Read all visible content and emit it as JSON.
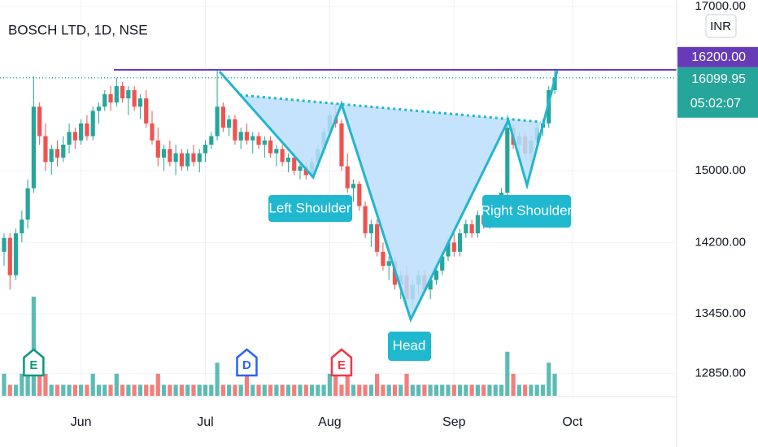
{
  "chart_data": {
    "type": "candlestick",
    "title": "BOSCH LTD, 1D, NSE",
    "currency": "INR",
    "log_scale": true,
    "grid": true,
    "ylim": [
      12610,
      17085
    ],
    "yticks": [
      {
        "value": 17000,
        "label": "17000.00"
      },
      {
        "value": 15000,
        "label": "15000.00"
      },
      {
        "value": 14200,
        "label": "14200.00"
      },
      {
        "value": 13450,
        "label": "13450.00"
      },
      {
        "value": 12850,
        "label": "12850.00"
      }
    ],
    "up_color": "#26a69a",
    "down_color": "#ef5350",
    "level": {
      "value": 16200,
      "label": "16200.00",
      "color": "#673ab7"
    },
    "last_price": 16099.95,
    "countdown": "05:02:07",
    "last_color": "#26a69a",
    "annotations": [
      "Left Shoulder",
      "Head",
      "Right Shoulder"
    ],
    "categories": [
      null,
      null,
      null,
      null,
      null,
      null,
      null,
      null,
      null,
      null,
      null,
      null,
      null,
      "Jun",
      null,
      null,
      null,
      null,
      null,
      null,
      null,
      null,
      null,
      null,
      null,
      null,
      null,
      null,
      null,
      null,
      null,
      null,
      null,
      null,
      "Jul",
      null,
      null,
      null,
      null,
      null,
      null,
      null,
      null,
      null,
      null,
      null,
      null,
      null,
      null,
      null,
      null,
      null,
      null,
      null,
      null,
      "Aug",
      null,
      null,
      null,
      null,
      null,
      null,
      null,
      null,
      null,
      null,
      null,
      null,
      null,
      null,
      null,
      null,
      null,
      null,
      null,
      null,
      "Sep",
      null,
      null,
      null,
      null,
      null,
      null,
      null,
      null,
      null,
      null,
      null,
      null,
      null,
      null,
      null,
      null,
      null,
      null,
      null,
      "Oct"
    ],
    "ohlc": [
      [
        14100,
        14300,
        13950,
        14250
      ],
      [
        14250,
        14300,
        13700,
        13850
      ],
      [
        13850,
        14350,
        13800,
        14300
      ],
      [
        14300,
        14550,
        14200,
        14450
      ],
      [
        14450,
        14900,
        14350,
        14800
      ],
      [
        14800,
        16120,
        14750,
        15750
      ],
      [
        15750,
        15800,
        15300,
        15400
      ],
      [
        15400,
        15550,
        15000,
        15100
      ],
      [
        15100,
        15300,
        14950,
        15250
      ],
      [
        15250,
        15350,
        15050,
        15150
      ],
      [
        15150,
        15400,
        15100,
        15300
      ],
      [
        15300,
        15550,
        15200,
        15450
      ],
      [
        15450,
        15500,
        15250,
        15350
      ],
      [
        15350,
        15600,
        15300,
        15550
      ],
      [
        15550,
        15650,
        15350,
        15400
      ],
      [
        15400,
        15750,
        15350,
        15700
      ],
      [
        15700,
        15800,
        15550,
        15750
      ],
      [
        15750,
        15950,
        15700,
        15900
      ],
      [
        15900,
        16000,
        15700,
        15800
      ],
      [
        15800,
        16100,
        15750,
        16000
      ],
      [
        16000,
        16050,
        15800,
        15850
      ],
      [
        15850,
        16000,
        15650,
        15950
      ],
      [
        15950,
        16000,
        15700,
        15750
      ],
      [
        15750,
        15900,
        15600,
        15850
      ],
      [
        15850,
        15950,
        15500,
        15550
      ],
      [
        15550,
        15700,
        15300,
        15350
      ],
      [
        15350,
        15500,
        15050,
        15150
      ],
      [
        15150,
        15300,
        15000,
        15250
      ],
      [
        15250,
        15350,
        15050,
        15100
      ],
      [
        15100,
        15300,
        14950,
        15200
      ],
      [
        15200,
        15250,
        15000,
        15050
      ],
      [
        15050,
        15250,
        15000,
        15200
      ],
      [
        15200,
        15300,
        15050,
        15100
      ],
      [
        15100,
        15250,
        14980,
        15200
      ],
      [
        15200,
        15350,
        15100,
        15300
      ],
      [
        15300,
        15450,
        15250,
        15400
      ],
      [
        15400,
        16200,
        15350,
        15750
      ],
      [
        15750,
        15800,
        15450,
        15500
      ],
      [
        15500,
        15650,
        15400,
        15600
      ],
      [
        15600,
        15650,
        15300,
        15350
      ],
      [
        15350,
        15500,
        15250,
        15450
      ],
      [
        15450,
        15550,
        15300,
        15350
      ],
      [
        15350,
        15450,
        15200,
        15400
      ],
      [
        15400,
        15450,
        15250,
        15300
      ],
      [
        15300,
        15400,
        15150,
        15350
      ],
      [
        15350,
        15400,
        15150,
        15200
      ],
      [
        15200,
        15300,
        15050,
        15250
      ],
      [
        15250,
        15300,
        15050,
        15100
      ],
      [
        15100,
        15200,
        14980,
        15150
      ],
      [
        15150,
        15200,
        14950,
        15000
      ],
      [
        15000,
        15100,
        14900,
        15050
      ],
      [
        15050,
        15100,
        14900,
        14950
      ],
      [
        14950,
        15150,
        14920,
        15100
      ],
      [
        15100,
        15300,
        15050,
        15250
      ],
      [
        15250,
        15500,
        15200,
        15450
      ],
      [
        15450,
        15700,
        15400,
        15650
      ],
      [
        15650,
        15780,
        15500,
        15550
      ],
      [
        15550,
        15600,
        15000,
        15050
      ],
      [
        15050,
        15200,
        14750,
        14800
      ],
      [
        14800,
        14900,
        14650,
        14850
      ],
      [
        14850,
        14880,
        14550,
        14600
      ],
      [
        14600,
        14650,
        14250,
        14300
      ],
      [
        14300,
        14450,
        14150,
        14400
      ],
      [
        14400,
        14450,
        14050,
        14100
      ],
      [
        14100,
        14200,
        13900,
        13950
      ],
      [
        13950,
        14050,
        13800,
        14000
      ],
      [
        14000,
        14050,
        13700,
        13750
      ],
      [
        13750,
        13900,
        13600,
        13850
      ],
      [
        13850,
        13950,
        13550,
        13600
      ],
      [
        13600,
        13800,
        13500,
        13750
      ],
      [
        13750,
        13900,
        13650,
        13850
      ],
      [
        13850,
        13900,
        13650,
        13700
      ],
      [
        13700,
        13850,
        13600,
        13800
      ],
      [
        13800,
        13950,
        13750,
        13900
      ],
      [
        13900,
        14100,
        13850,
        14050
      ],
      [
        14050,
        14250,
        14000,
        14200
      ],
      [
        14200,
        14300,
        14050,
        14100
      ],
      [
        14100,
        14350,
        14050,
        14300
      ],
      [
        14300,
        14450,
        14250,
        14400
      ],
      [
        14400,
        14450,
        14250,
        14300
      ],
      [
        14300,
        14550,
        14250,
        14500
      ],
      [
        14500,
        14600,
        14350,
        14400
      ],
      [
        14400,
        14650,
        14350,
        14600
      ],
      [
        14600,
        14700,
        14500,
        14650
      ],
      [
        14650,
        14800,
        14600,
        14750
      ],
      [
        14750,
        15650,
        14700,
        15500
      ],
      [
        15500,
        15550,
        15250,
        15300
      ],
      [
        15300,
        15450,
        15150,
        15400
      ],
      [
        15400,
        15450,
        15150,
        15200
      ],
      [
        15200,
        15400,
        15100,
        15350
      ],
      [
        15350,
        15550,
        15300,
        15500
      ],
      [
        15500,
        15600,
        15400,
        15550
      ],
      [
        15550,
        16000,
        15500,
        15950
      ],
      [
        15950,
        16210,
        15900,
        16099.95
      ],
      null,
      null,
      null
    ],
    "volume": [
      2,
      1,
      1,
      2,
      2,
      9,
      2,
      2,
      1,
      1,
      1,
      1,
      1,
      1,
      1,
      2,
      1,
      1,
      1,
      2,
      1,
      1,
      1,
      1,
      1,
      1,
      2,
      1,
      1,
      1,
      1,
      1,
      1,
      1,
      1,
      1,
      3,
      1,
      1,
      1,
      1,
      2,
      1,
      1,
      1,
      1,
      1,
      1,
      1,
      1,
      1,
      1,
      1,
      1,
      1,
      2,
      2,
      1,
      2,
      1,
      1,
      1,
      1,
      2,
      1,
      1,
      1,
      1,
      2,
      1,
      1,
      1,
      1,
      1,
      1,
      1,
      1,
      1,
      1,
      1,
      1,
      1,
      1,
      1,
      1,
      4,
      2,
      1,
      1,
      1,
      1,
      1,
      3,
      2,
      null,
      null,
      null
    ],
    "events": [
      {
        "label": "E",
        "index": 5,
        "color": "#089981"
      },
      {
        "label": "D",
        "index": 41,
        "color": "#2962ff"
      },
      {
        "label": "E",
        "index": 57,
        "color": "#f23645"
      }
    ]
  }
}
